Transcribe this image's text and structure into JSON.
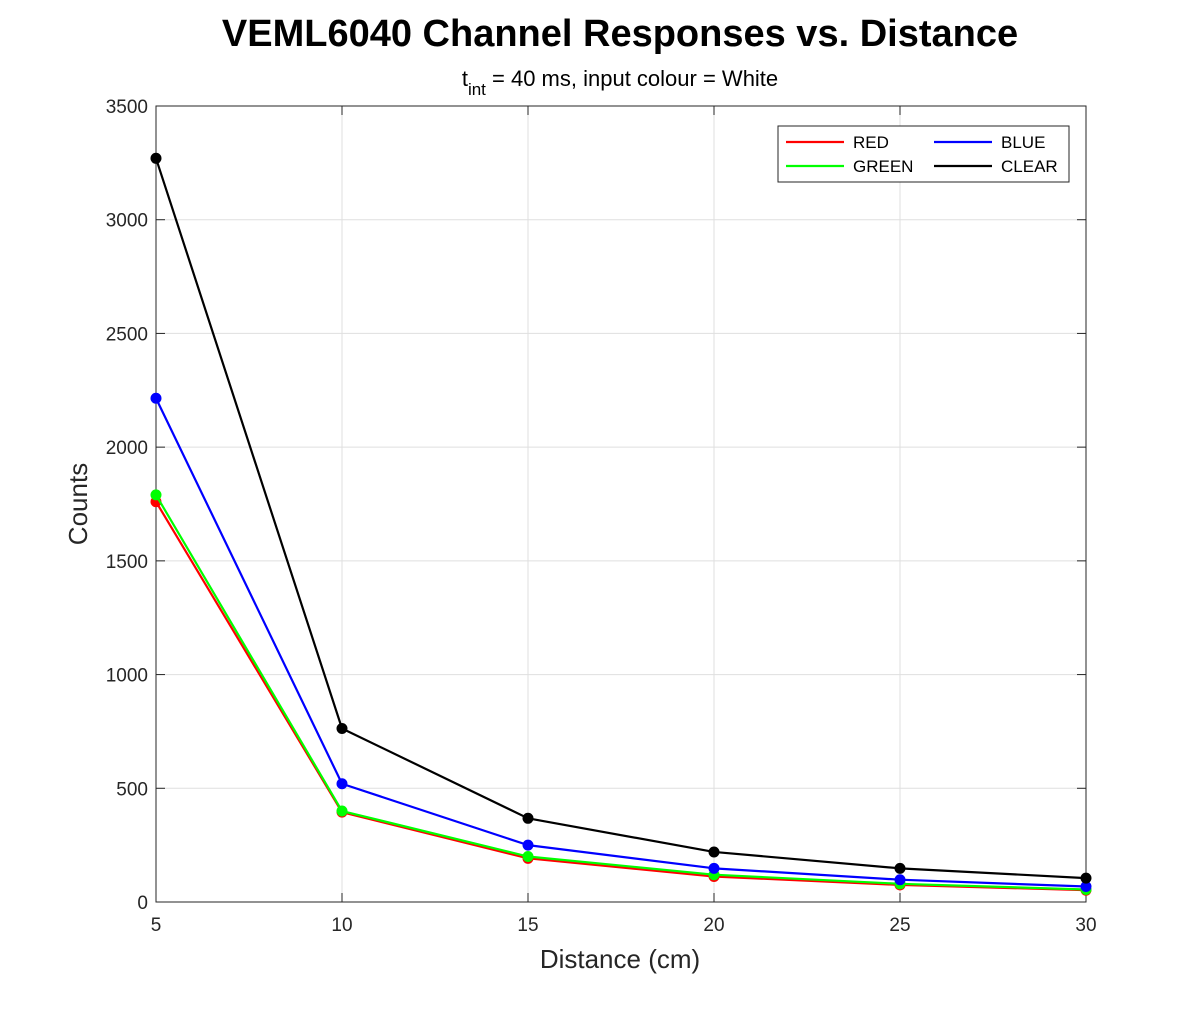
{
  "chart_data": {
    "type": "line",
    "title": "VEML6040 Channel Responses vs. Distance",
    "subtitle": {
      "prefix": "t",
      "subscript": "int",
      "suffix": " = 40 ms, input colour = White"
    },
    "xlabel": "Distance (cm)",
    "ylabel": "Counts",
    "xlim": [
      5,
      30
    ],
    "ylim": [
      0,
      3500
    ],
    "xticks": [
      5,
      10,
      15,
      20,
      25,
      30
    ],
    "yticks": [
      0,
      500,
      1000,
      1500,
      2000,
      2500,
      3000,
      3500
    ],
    "grid": true,
    "legend_position": "top-right",
    "x": [
      5,
      10,
      15,
      20,
      25,
      30
    ],
    "series": [
      {
        "name": "RED",
        "color": "#ff0000",
        "values": [
          1760,
          395,
          192,
          112,
          75,
          52
        ]
      },
      {
        "name": "GREEN",
        "color": "#00ff00",
        "values": [
          1790,
          400,
          200,
          120,
          80,
          55
        ]
      },
      {
        "name": "BLUE",
        "color": "#0000ff",
        "values": [
          2215,
          520,
          250,
          148,
          98,
          68
        ]
      },
      {
        "name": "CLEAR",
        "color": "#000000",
        "values": [
          3270,
          763,
          368,
          220,
          148,
          105
        ]
      }
    ],
    "legend_order": [
      "RED",
      "BLUE",
      "GREEN",
      "CLEAR"
    ]
  }
}
